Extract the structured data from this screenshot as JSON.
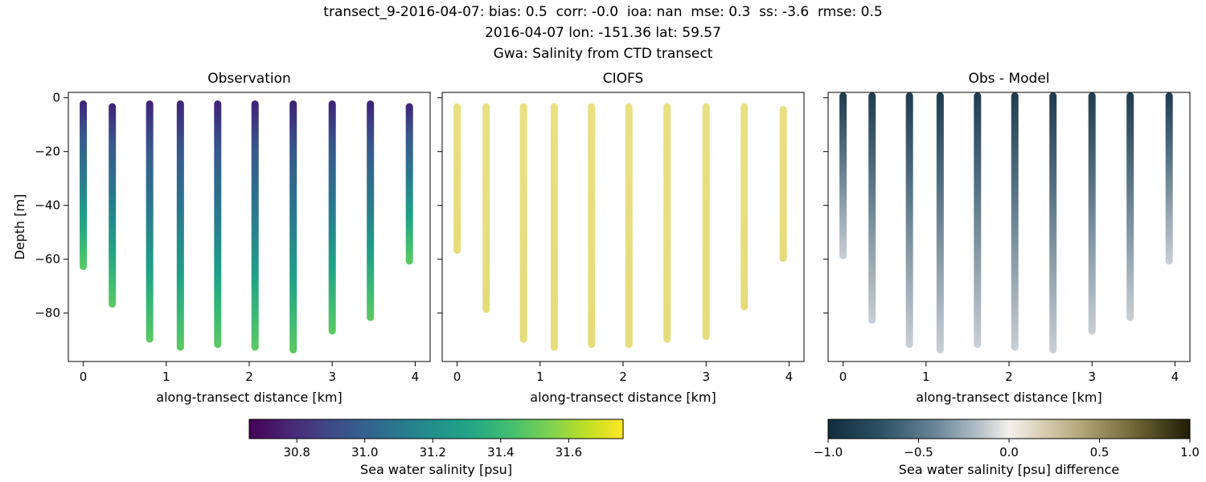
{
  "chart_data": {
    "type": "scatter",
    "suptitle_lines": [
      "transect_9-2016-04-07: bias: 0.5  corr: -0.0  ioa: nan  mse: 0.3  ss: -3.6  rmse: 0.5",
      "2016-04-07 lon: -151.36 lat: 59.57",
      "Gwa: Salinity from CTD transect"
    ],
    "xlabel": "along-transect distance [km]",
    "ylabel": "Depth [m]",
    "xlim": [
      -0.18,
      4.18
    ],
    "ylim": [
      -98,
      2
    ],
    "grid": false,
    "xticks": [
      {
        "v": 0,
        "label": "0"
      },
      {
        "v": 1,
        "label": "1"
      },
      {
        "v": 2,
        "label": "2"
      },
      {
        "v": 3,
        "label": "3"
      },
      {
        "v": 4,
        "label": "4"
      }
    ],
    "yticks": [
      {
        "v": 0,
        "label": "0"
      },
      {
        "v": -20,
        "label": "−20"
      },
      {
        "v": -40,
        "label": "−40"
      },
      {
        "v": -60,
        "label": "−60"
      },
      {
        "v": -80,
        "label": "−80"
      }
    ],
    "panels": [
      {
        "title": "Observation",
        "show_ylabels": true,
        "value_note": "salinity increases with depth, ~30.7 psu at surface to ~31.45 psu at bottom",
        "gradient": [
          [
            0,
            "#3f2277"
          ],
          [
            0.2,
            "#38588c"
          ],
          [
            0.45,
            "#2a788e"
          ],
          [
            0.7,
            "#1fa187"
          ],
          [
            0.88,
            "#3fbc73"
          ],
          [
            1,
            "#5ec962"
          ]
        ],
        "columns": [
          {
            "x": 0.0,
            "top": -1,
            "bottom": -64
          },
          {
            "x": 0.35,
            "top": -2,
            "bottom": -78
          },
          {
            "x": 0.8,
            "top": -1,
            "bottom": -91
          },
          {
            "x": 1.17,
            "top": -1,
            "bottom": -94
          },
          {
            "x": 1.62,
            "top": -1,
            "bottom": -93
          },
          {
            "x": 2.07,
            "top": -1,
            "bottom": -94
          },
          {
            "x": 2.53,
            "top": -1,
            "bottom": -95
          },
          {
            "x": 3.0,
            "top": -1,
            "bottom": -88
          },
          {
            "x": 3.46,
            "top": -1,
            "bottom": -83
          },
          {
            "x": 3.93,
            "top": -2,
            "bottom": -62
          }
        ]
      },
      {
        "title": "CIOFS",
        "show_ylabels": false,
        "value_note": "model salinity nearly uniform ~31.7 psu",
        "gradient": [
          [
            0,
            "#e9e083"
          ],
          [
            1,
            "#e5dc7b"
          ]
        ],
        "columns": [
          {
            "x": 0.0,
            "top": -2,
            "bottom": -58
          },
          {
            "x": 0.35,
            "top": -2,
            "bottom": -80
          },
          {
            "x": 0.8,
            "top": -2,
            "bottom": -91
          },
          {
            "x": 1.17,
            "top": -2,
            "bottom": -94
          },
          {
            "x": 1.62,
            "top": -2,
            "bottom": -93
          },
          {
            "x": 2.07,
            "top": -2,
            "bottom": -93
          },
          {
            "x": 2.53,
            "top": -2,
            "bottom": -91
          },
          {
            "x": 3.0,
            "top": -2,
            "bottom": -90
          },
          {
            "x": 3.46,
            "top": -2,
            "bottom": -79
          },
          {
            "x": 3.93,
            "top": -3,
            "bottom": -61
          }
        ]
      },
      {
        "title": "Obs - Model",
        "show_ylabels": false,
        "value_note": "difference ~ -1.0 psu near surface to ~ -0.3 psu at depth",
        "gradient": [
          [
            0,
            "#1e3c4e"
          ],
          [
            0.35,
            "#526e80"
          ],
          [
            0.7,
            "#93a4af"
          ],
          [
            1,
            "#c9cfd5"
          ]
        ],
        "columns": [
          {
            "x": 0.0,
            "top": 2,
            "bottom": -60
          },
          {
            "x": 0.35,
            "top": 2,
            "bottom": -84
          },
          {
            "x": 0.8,
            "top": 2,
            "bottom": -93
          },
          {
            "x": 1.17,
            "top": 2,
            "bottom": -95
          },
          {
            "x": 1.62,
            "top": 2,
            "bottom": -93
          },
          {
            "x": 2.07,
            "top": 2,
            "bottom": -94
          },
          {
            "x": 2.53,
            "top": 2,
            "bottom": -95
          },
          {
            "x": 3.0,
            "top": 2,
            "bottom": -88
          },
          {
            "x": 3.46,
            "top": 2,
            "bottom": -83
          },
          {
            "x": 3.93,
            "top": 2,
            "bottom": -62
          }
        ]
      }
    ],
    "colorbars": [
      {
        "label": "Sea water salinity [psu]",
        "vmin": 30.66,
        "vmax": 31.76,
        "ticks": [
          {
            "v": 30.8,
            "label": "30.8"
          },
          {
            "v": 31.0,
            "label": "31.0"
          },
          {
            "v": 31.2,
            "label": "31.2"
          },
          {
            "v": 31.4,
            "label": "31.4"
          },
          {
            "v": 31.6,
            "label": "31.6"
          }
        ],
        "gradient": [
          [
            0,
            "#440154"
          ],
          [
            0.1,
            "#482475"
          ],
          [
            0.2,
            "#414487"
          ],
          [
            0.3,
            "#355f8d"
          ],
          [
            0.4,
            "#2a788e"
          ],
          [
            0.5,
            "#21918c"
          ],
          [
            0.6,
            "#22a884"
          ],
          [
            0.7,
            "#44bf70"
          ],
          [
            0.8,
            "#7ad151"
          ],
          [
            0.9,
            "#bddf26"
          ],
          [
            1,
            "#fde725"
          ]
        ]
      },
      {
        "label": "Sea water salinity [psu] difference",
        "vmin": -1.0,
        "vmax": 1.0,
        "ticks": [
          {
            "v": -1.0,
            "label": "−1.0"
          },
          {
            "v": -0.5,
            "label": "−0.5"
          },
          {
            "v": 0.0,
            "label": "0.0"
          },
          {
            "v": 0.5,
            "label": "0.5"
          },
          {
            "v": 1.0,
            "label": "1.0"
          }
        ],
        "gradient": [
          [
            0,
            "#112d3e"
          ],
          [
            0.15,
            "#2e5266"
          ],
          [
            0.3,
            "#6b8799"
          ],
          [
            0.42,
            "#b6c2c9"
          ],
          [
            0.5,
            "#f4f1ec"
          ],
          [
            0.58,
            "#ddd3bb"
          ],
          [
            0.7,
            "#b3a678"
          ],
          [
            0.85,
            "#6e6434"
          ],
          [
            1,
            "#201d06"
          ]
        ]
      }
    ]
  }
}
